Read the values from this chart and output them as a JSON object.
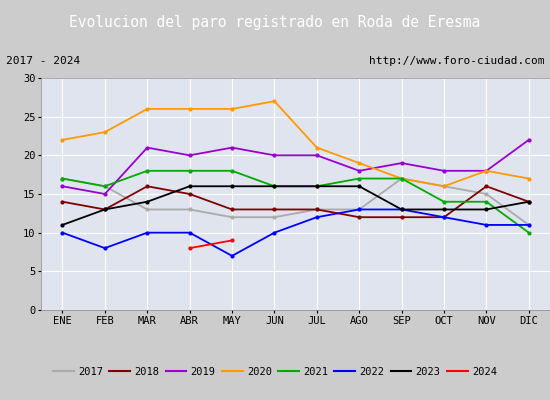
{
  "title": "Evolucion del paro registrado en Roda de Eresma",
  "subtitle_left": "2017 - 2024",
  "subtitle_right": "http://www.foro-ciudad.com",
  "months": [
    "ENE",
    "FEB",
    "MAR",
    "ABR",
    "MAY",
    "JUN",
    "JUL",
    "AGO",
    "SEP",
    "OCT",
    "NOV",
    "DIC"
  ],
  "ylim": [
    0,
    30
  ],
  "yticks": [
    0,
    5,
    10,
    15,
    20,
    25,
    30
  ],
  "series": {
    "2017": {
      "color": "#aaaaaa",
      "linestyle": "-",
      "values": [
        17,
        16,
        13,
        13,
        12,
        12,
        13,
        13,
        17,
        16,
        15,
        11
      ]
    },
    "2018": {
      "color": "#800000",
      "linestyle": "-",
      "values": [
        14,
        13,
        16,
        15,
        13,
        13,
        13,
        12,
        12,
        12,
        16,
        14
      ]
    },
    "2019": {
      "color": "#9900cc",
      "linestyle": "-",
      "values": [
        16,
        15,
        21,
        20,
        21,
        20,
        20,
        18,
        19,
        18,
        18,
        22
      ]
    },
    "2020": {
      "color": "#ff9900",
      "linestyle": "-",
      "values": [
        22,
        23,
        26,
        26,
        26,
        27,
        21,
        19,
        17,
        16,
        18,
        17
      ]
    },
    "2021": {
      "color": "#00aa00",
      "linestyle": "-",
      "values": [
        17,
        16,
        18,
        18,
        18,
        16,
        16,
        17,
        17,
        14,
        14,
        10
      ]
    },
    "2022": {
      "color": "#0000ff",
      "linestyle": "-",
      "values": [
        10,
        8,
        10,
        10,
        7,
        10,
        12,
        13,
        13,
        12,
        11,
        11
      ]
    },
    "2023": {
      "color": "#000000",
      "linestyle": "-",
      "values": [
        11,
        13,
        14,
        16,
        16,
        16,
        16,
        16,
        13,
        13,
        13,
        14
      ]
    },
    "2024": {
      "color": "#ff0000",
      "linestyle": "-",
      "values": [
        null,
        null,
        null,
        8,
        9,
        null,
        null,
        null,
        null,
        null,
        null,
        null
      ]
    }
  },
  "title_bg_color": "#5577ee",
  "title_color": "#ffffff",
  "title_fontsize": 10.5,
  "subtitle_bg_color": "#dddddd",
  "subtitle_fontsize": 8,
  "plot_bg_color": "#e0e4ee",
  "outer_bg_color": "#cccccc",
  "grid_color": "#ffffff",
  "legend_bg_color": "#cccccc",
  "legend_fontsize": 7.5
}
